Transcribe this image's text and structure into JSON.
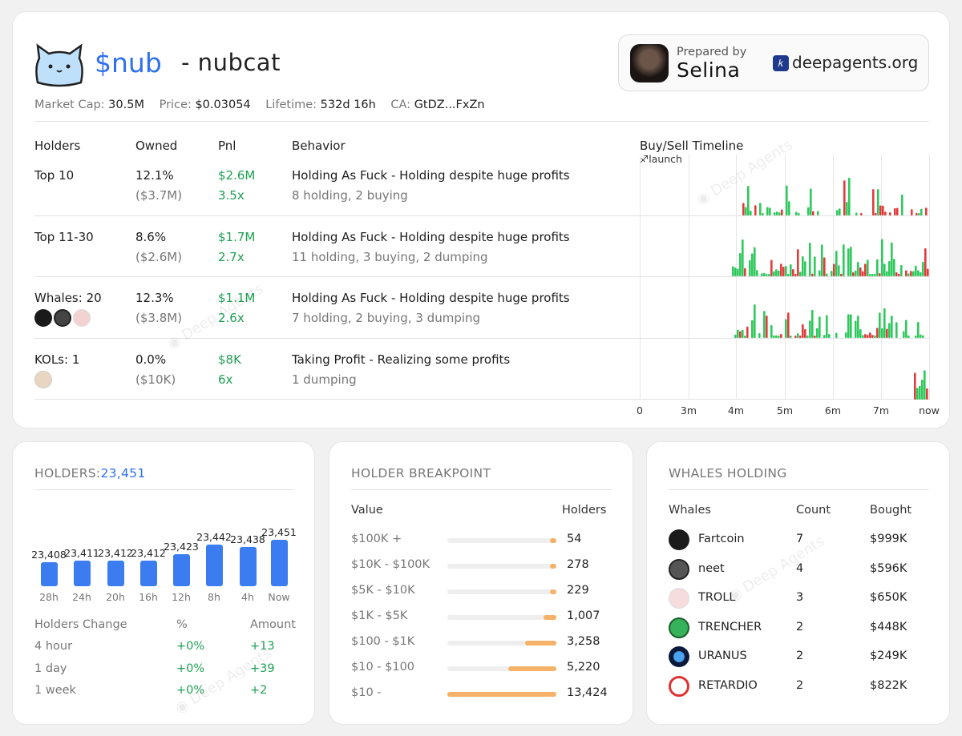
{
  "header": {
    "ticker": "$nub",
    "name": "- nubcat",
    "market_cap_label": "Market Cap:",
    "market_cap": "30.5M",
    "price_label": "Price:",
    "price": "$0.03054",
    "lifetime_label": "Lifetime:",
    "lifetime": "532d 16h",
    "ca_label": "CA:",
    "ca": "GtDZ...FxZn"
  },
  "prepared": {
    "label": "Prepared by",
    "name": "Selina",
    "site": "deepagents.org"
  },
  "table": {
    "headers": [
      "Holders",
      "Owned",
      "Pnl",
      "Behavior"
    ],
    "timeline_title": "Buy/Sell Timeline",
    "launch_label": "♐launch",
    "rows": [
      {
        "holders": "Top 10",
        "owned": "12.1%",
        "owned_usd": "($3.7M)",
        "pnl": "$2.6M",
        "pnl_x": "3.5x",
        "behavior": "Holding As Fuck - Holding despite huge profits",
        "detail": "8 holding, 2 buying"
      },
      {
        "holders": "Top 11-30",
        "owned": "8.6%",
        "owned_usd": "($2.6M)",
        "pnl": "$1.7M",
        "pnl_x": "2.7x",
        "behavior": "Holding As Fuck - Holding despite huge profits",
        "detail": "11 holding, 3 buying, 2 dumping"
      },
      {
        "holders": "Whales: 20",
        "owned": "12.3%",
        "owned_usd": "($3.8M)",
        "pnl": "$1.1M",
        "pnl_x": "2.6x",
        "behavior": "Holding As Fuck - Holding despite huge profits",
        "detail": "7 holding, 2 buying, 3 dumping"
      },
      {
        "holders": "KOLs: 1",
        "owned": "0.0%",
        "owned_usd": "($10K)",
        "pnl": "$8K",
        "pnl_x": "6x",
        "behavior": "Taking Profit - Realizing some profits",
        "detail": "1 dumping"
      }
    ],
    "timeline_ticks": [
      "0",
      "3m",
      "4m",
      "5m",
      "6m",
      "7m",
      "now"
    ]
  },
  "holders": {
    "title": "HOLDERS:",
    "count": "23,451",
    "chart_data": {
      "type": "bar",
      "categories": [
        "28h",
        "24h",
        "20h",
        "16h",
        "12h",
        "8h",
        "4h",
        "Now"
      ],
      "values": [
        23408,
        23411,
        23412,
        23412,
        23423,
        23442,
        23438,
        23451
      ],
      "labels": [
        "23,408",
        "23,411",
        "23,412",
        "23,412",
        "23,423",
        "23,442",
        "23,438",
        "23,451"
      ]
    },
    "change_headers": [
      "Holders Change",
      "%",
      "Amount"
    ],
    "changes": [
      {
        "period": "4 hour",
        "pct": "+0%",
        "amount": "+13"
      },
      {
        "period": "1 day",
        "pct": "+0%",
        "amount": "+39"
      },
      {
        "period": "1 week",
        "pct": "+0%",
        "amount": "+2"
      }
    ]
  },
  "breakpoint": {
    "title": "HOLDER BREAKPOINT",
    "headers": [
      "Value",
      "Holders"
    ],
    "rows": [
      {
        "range": "$100K +",
        "holders": "54",
        "fill": 0.04
      },
      {
        "range": "$10K - $100K",
        "holders": "278",
        "fill": 0.05
      },
      {
        "range": "$5K - $10K",
        "holders": "229",
        "fill": 0.045
      },
      {
        "range": "$1K - $5K",
        "holders": "1,007",
        "fill": 0.12
      },
      {
        "range": "$100 - $1K",
        "holders": "3,258",
        "fill": 0.29
      },
      {
        "range": "$10 - $100",
        "holders": "5,220",
        "fill": 0.44
      },
      {
        "range": "$10 -",
        "holders": "13,424",
        "fill": 1.0
      }
    ]
  },
  "whales": {
    "title": "WHALES HOLDING",
    "headers": [
      "Whales",
      "Count",
      "Bought"
    ],
    "rows": [
      {
        "name": "Fartcoin",
        "count": "7",
        "bought": "$999K",
        "icon": "fartcoin-icon"
      },
      {
        "name": "neet",
        "count": "4",
        "bought": "$596K",
        "icon": "neet-icon"
      },
      {
        "name": "TROLL",
        "count": "3",
        "bought": "$650K",
        "icon": "troll-icon"
      },
      {
        "name": "TRENCHER",
        "count": "2",
        "bought": "$448K",
        "icon": "trencher-icon"
      },
      {
        "name": "URANUS",
        "count": "2",
        "bought": "$249K",
        "icon": "uranus-icon"
      },
      {
        "name": "RETARDIO",
        "count": "2",
        "bought": "$822K",
        "icon": "retardio-icon"
      }
    ]
  },
  "colors": {
    "accent": "#2f6ff0",
    "buy": "#2ec95c",
    "sell": "#e23b3b",
    "bar": "#3b7df0",
    "breakpoint": "#f7b26a"
  }
}
